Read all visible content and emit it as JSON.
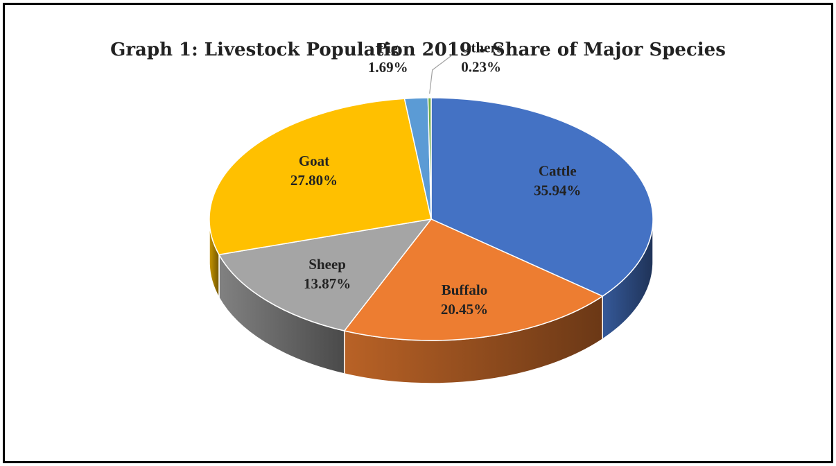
{
  "chart_data": {
    "type": "pie",
    "title": "Graph 1: Livestock Population 2019 - Share of Major Species",
    "slices": [
      {
        "label": "Cattle",
        "value": 35.94,
        "display": "35.94%",
        "color": "#4472C4"
      },
      {
        "label": "Buffalo",
        "value": 20.45,
        "display": "20.45%",
        "color": "#ED7D31"
      },
      {
        "label": "Sheep",
        "value": 13.87,
        "display": "13.87%",
        "color": "#A5A5A5"
      },
      {
        "label": "Goat",
        "value": 27.8,
        "display": "27.80%",
        "color": "#FFC000"
      },
      {
        "label": "Pig",
        "value": 1.69,
        "display": "1.69%",
        "color": "#5B9BD5"
      },
      {
        "label": "Others",
        "value": 0.23,
        "display": "0.23%",
        "color": "#70AD47"
      }
    ],
    "style": "3d-pie",
    "legend": "none"
  }
}
